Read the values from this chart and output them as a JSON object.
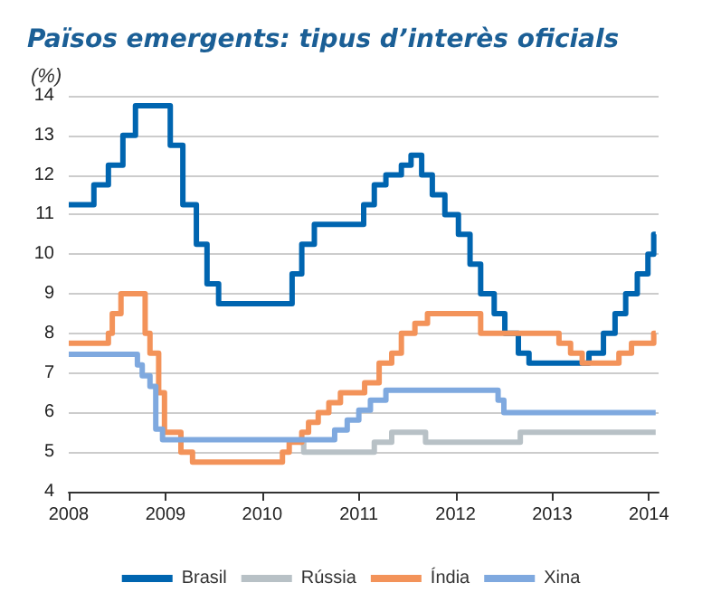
{
  "chart_data": {
    "type": "step",
    "title": "Països emergents: tipus d’interès oficials",
    "ylabel": "(%)",
    "xlim": [
      2008,
      2014.1
    ],
    "xticks": [
      2008,
      2009,
      2010,
      2011,
      2012,
      2013,
      2014
    ],
    "ylim": [
      4,
      14
    ],
    "yticks": [
      4,
      5,
      6,
      7,
      8,
      9,
      10,
      11,
      12,
      13,
      14
    ],
    "grid": "y",
    "legend": "bottom",
    "line_style": "solid",
    "marker": "none",
    "series": [
      {
        "name": "Brasil",
        "color": "#0065b0",
        "x": [
          2008,
          2008.26,
          2008.41,
          2008.56,
          2008.69,
          2009.05,
          2009.18,
          2009.32,
          2009.43,
          2009.55,
          2010.31,
          2010.41,
          2010.54,
          2011.05,
          2011.16,
          2011.28,
          2011.44,
          2011.54,
          2011.65,
          2011.76,
          2011.89,
          2012.03,
          2012.15,
          2012.26,
          2012.4,
          2012.51,
          2012.65,
          2012.76,
          2013.38,
          2013.53,
          2013.65,
          2013.76,
          2013.88,
          2013.99,
          2014.05,
          2014.07
        ],
        "values": [
          11.25,
          11.75,
          12.25,
          13,
          13.75,
          12.75,
          11.25,
          10.25,
          9.25,
          8.75,
          9.5,
          10.25,
          10.75,
          11.25,
          11.75,
          12,
          12.25,
          12.5,
          12,
          11.5,
          11,
          10.5,
          9.75,
          9,
          8.5,
          8,
          7.5,
          7.25,
          7.5,
          8,
          8.5,
          9,
          9.5,
          10,
          10.5,
          10.5
        ]
      },
      {
        "name": "Rússia",
        "color": "#b8c1c6",
        "x": [
          2010.39,
          2010.43,
          2011.16,
          2011.34,
          2011.69,
          2012.67,
          2014.07
        ],
        "values": [
          5.25,
          5,
          5.25,
          5.5,
          5.25,
          5.5,
          5.5
        ]
      },
      {
        "name": "Índia",
        "color": "#f3935a",
        "x": [
          2008,
          2008.41,
          2008.45,
          2008.54,
          2008.79,
          2008.84,
          2008.93,
          2008.99,
          2009.16,
          2009.28,
          2010.21,
          2010.28,
          2010.41,
          2010.48,
          2010.58,
          2010.69,
          2010.81,
          2011.06,
          2011.21,
          2011.34,
          2011.44,
          2011.58,
          2011.71,
          2012.26,
          2013.07,
          2013.19,
          2013.31,
          2013.69,
          2013.82,
          2014.05,
          2014.07
        ],
        "values": [
          7.75,
          8,
          8.5,
          9,
          8,
          7.5,
          6.5,
          5.5,
          5,
          4.75,
          5,
          5.25,
          5.5,
          5.75,
          6,
          6.25,
          6.5,
          6.75,
          7.25,
          7.5,
          8,
          8.25,
          8.5,
          8,
          7.75,
          7.5,
          7.25,
          7.5,
          7.75,
          8,
          8
        ]
      },
      {
        "name": "Xina",
        "color": "#7fa9df",
        "x": [
          2008,
          2008.71,
          2008.76,
          2008.84,
          2008.9,
          2008.97,
          2010.75,
          2010.88,
          2011,
          2011.12,
          2011.28,
          2012.44,
          2012.5,
          2014.07
        ],
        "values": [
          7.47,
          7.2,
          6.93,
          6.66,
          5.58,
          5.31,
          5.56,
          5.81,
          6.06,
          6.31,
          6.56,
          6.31,
          6,
          6
        ]
      }
    ]
  }
}
